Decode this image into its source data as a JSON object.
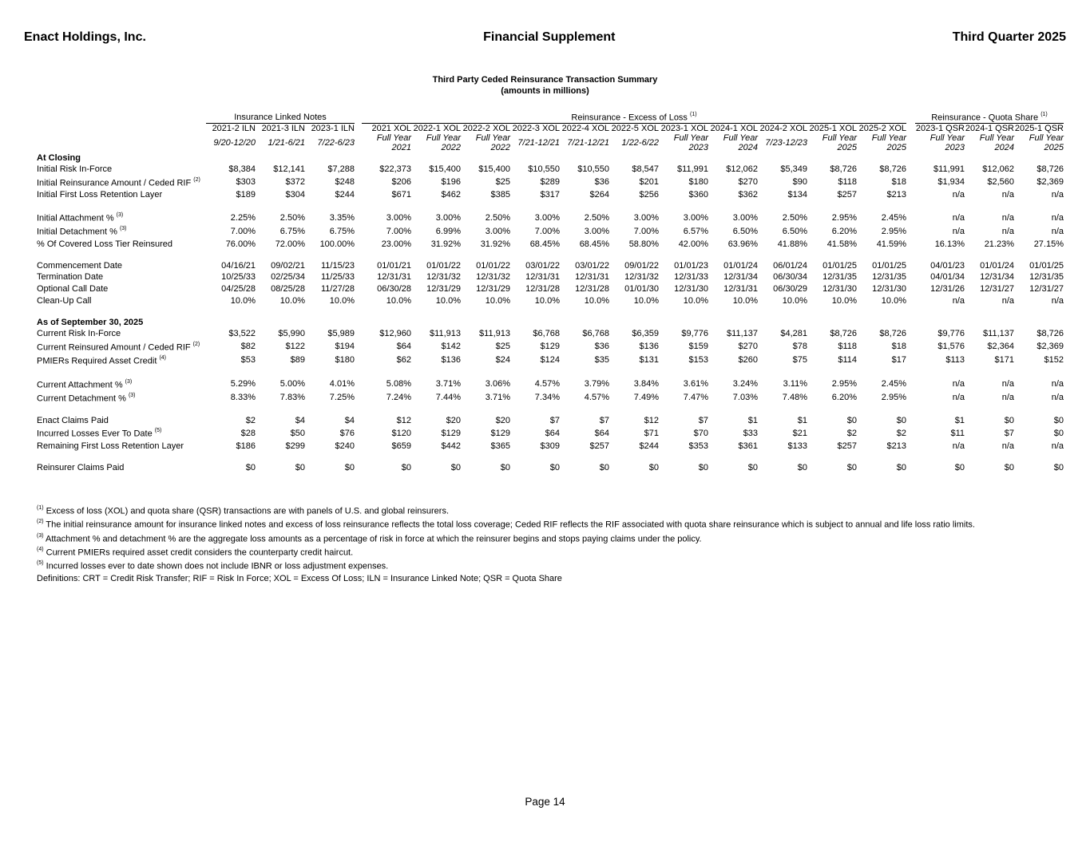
{
  "header": {
    "company": "Enact Holdings, Inc.",
    "doc_title": "Financial Supplement",
    "quarter": "Third Quarter 2025"
  },
  "table": {
    "title": "Third Party Ceded Reinsurance Transaction Summary",
    "subtitle": "(amounts in millions)",
    "groups": [
      {
        "label": "Insurance Linked Notes",
        "sup": "",
        "span": 3
      },
      {
        "label": "Reinsurance - Excess of Loss",
        "sup": "(1)",
        "span": 11
      },
      {
        "label": "Reinsurance - Quota Share",
        "sup": "(1)",
        "span": 3
      }
    ],
    "columns": [
      {
        "name": "2021-2 ILN",
        "period": "9/20-12/20"
      },
      {
        "name": "2021-3 ILN",
        "period": "1/21-6/21"
      },
      {
        "name": "2023-1 ILN",
        "period": "7/22-6/23"
      },
      {
        "name": "2021 XOL",
        "period": "Full Year 2021"
      },
      {
        "name": "2022-1 XOL",
        "period": "Full Year 2022"
      },
      {
        "name": "2022-2 XOL",
        "period": "Full Year 2022"
      },
      {
        "name": "2022-3 XOL",
        "period": "7/21-12/21"
      },
      {
        "name": "2022-4 XOL",
        "period": "7/21-12/21"
      },
      {
        "name": "2022-5 XOL",
        "period": "1/22-6/22"
      },
      {
        "name": "2023-1 XOL",
        "period": "Full Year 2023"
      },
      {
        "name": "2024-1 XOL",
        "period": "Full Year 2024"
      },
      {
        "name": "2024-2 XOL",
        "period": "7/23-12/23"
      },
      {
        "name": "2025-1 XOL",
        "period": "Full Year 2025"
      },
      {
        "name": "2025-2 XOL",
        "period": "Full Year 2025"
      },
      {
        "name": "2023-1 QSR",
        "period": "Full Year 2023"
      },
      {
        "name": "2024-1 QSR",
        "period": "Full Year 2024"
      },
      {
        "name": "2025-1 QSR",
        "period": "Full Year 2025"
      }
    ],
    "rows": [
      {
        "type": "section",
        "label": "At Closing"
      },
      {
        "type": "data",
        "label": "Initial Risk In-Force",
        "sup": "",
        "values": [
          "$8,384",
          "$12,141",
          "$7,288",
          "$22,373",
          "$15,400",
          "$15,400",
          "$10,550",
          "$10,550",
          "$8,547",
          "$11,991",
          "$12,062",
          "$5,349",
          "$8,726",
          "$8,726",
          "$11,991",
          "$12,062",
          "$8,726"
        ]
      },
      {
        "type": "data",
        "label": "Initial Reinsurance Amount / Ceded RIF",
        "sup": "(2)",
        "values": [
          "$303",
          "$372",
          "$248",
          "$206",
          "$196",
          "$25",
          "$289",
          "$36",
          "$201",
          "$180",
          "$270",
          "$90",
          "$118",
          "$18",
          "$1,934",
          "$2,560",
          "$2,369"
        ]
      },
      {
        "type": "data",
        "label": "Initial First Loss Retention Layer",
        "sup": "",
        "values": [
          "$189",
          "$304",
          "$244",
          "$671",
          "$462",
          "$385",
          "$317",
          "$264",
          "$256",
          "$360",
          "$362",
          "$134",
          "$257",
          "$213",
          "n/a",
          "n/a",
          "n/a"
        ]
      },
      {
        "type": "gap"
      },
      {
        "type": "data",
        "label": "Initial Attachment %",
        "sup": "(3)",
        "values": [
          "2.25%",
          "2.50%",
          "3.35%",
          "3.00%",
          "3.00%",
          "2.50%",
          "3.00%",
          "2.50%",
          "3.00%",
          "3.00%",
          "3.00%",
          "2.50%",
          "2.95%",
          "2.45%",
          "n/a",
          "n/a",
          "n/a"
        ]
      },
      {
        "type": "data",
        "label": "Initial Detachment %",
        "sup": "(3)",
        "values": [
          "7.00%",
          "6.75%",
          "6.75%",
          "7.00%",
          "6.99%",
          "3.00%",
          "7.00%",
          "3.00%",
          "7.00%",
          "6.57%",
          "6.50%",
          "6.50%",
          "6.20%",
          "2.95%",
          "n/a",
          "n/a",
          "n/a"
        ]
      },
      {
        "type": "data",
        "label": "% Of Covered Loss Tier Reinsured",
        "sup": "",
        "values": [
          "76.00%",
          "72.00%",
          "100.00%",
          "23.00%",
          "31.92%",
          "31.92%",
          "68.45%",
          "68.45%",
          "58.80%",
          "42.00%",
          "63.96%",
          "41.88%",
          "41.58%",
          "41.59%",
          "16.13%",
          "21.23%",
          "27.15%"
        ]
      },
      {
        "type": "gap"
      },
      {
        "type": "data",
        "label": "Commencement Date",
        "sup": "",
        "values": [
          "04/16/21",
          "09/02/21",
          "11/15/23",
          "01/01/21",
          "01/01/22",
          "01/01/22",
          "03/01/22",
          "03/01/22",
          "09/01/22",
          "01/01/23",
          "01/01/24",
          "06/01/24",
          "01/01/25",
          "01/01/25",
          "04/01/23",
          "01/01/24",
          "01/01/25"
        ]
      },
      {
        "type": "data",
        "label": "Termination Date",
        "sup": "",
        "values": [
          "10/25/33",
          "02/25/34",
          "11/25/33",
          "12/31/31",
          "12/31/32",
          "12/31/32",
          "12/31/31",
          "12/31/31",
          "12/31/32",
          "12/31/33",
          "12/31/34",
          "06/30/34",
          "12/31/35",
          "12/31/35",
          "04/01/34",
          "12/31/34",
          "12/31/35"
        ]
      },
      {
        "type": "data",
        "label": "Optional Call Date",
        "sup": "",
        "values": [
          "04/25/28",
          "08/25/28",
          "11/27/28",
          "06/30/28",
          "12/31/29",
          "12/31/29",
          "12/31/28",
          "12/31/28",
          "01/01/30",
          "12/31/30",
          "12/31/31",
          "06/30/29",
          "12/31/30",
          "12/31/30",
          "12/31/26",
          "12/31/27",
          "12/31/27"
        ]
      },
      {
        "type": "data",
        "label": "Clean-Up Call",
        "sup": "",
        "values": [
          "10.0%",
          "10.0%",
          "10.0%",
          "10.0%",
          "10.0%",
          "10.0%",
          "10.0%",
          "10.0%",
          "10.0%",
          "10.0%",
          "10.0%",
          "10.0%",
          "10.0%",
          "10.0%",
          "n/a",
          "n/a",
          "n/a"
        ]
      },
      {
        "type": "gap"
      },
      {
        "type": "section",
        "label": "As of September 30, 2025"
      },
      {
        "type": "data",
        "label": "Current Risk In-Force",
        "sup": "",
        "values": [
          "$3,522",
          "$5,990",
          "$5,989",
          "$12,960",
          "$11,913",
          "$11,913",
          "$6,768",
          "$6,768",
          "$6,359",
          "$9,776",
          "$11,137",
          "$4,281",
          "$8,726",
          "$8,726",
          "$9,776",
          "$11,137",
          "$8,726"
        ]
      },
      {
        "type": "data",
        "label": "Current Reinsured Amount / Ceded RIF",
        "sup": "(2)",
        "values": [
          "$82",
          "$122",
          "$194",
          "$64",
          "$142",
          "$25",
          "$129",
          "$36",
          "$136",
          "$159",
          "$270",
          "$78",
          "$118",
          "$18",
          "$1,576",
          "$2,364",
          "$2,369"
        ]
      },
      {
        "type": "data",
        "label": "PMIERs Required Asset Credit",
        "sup": "(4)",
        "values": [
          "$53",
          "$89",
          "$180",
          "$62",
          "$136",
          "$24",
          "$124",
          "$35",
          "$131",
          "$153",
          "$260",
          "$75",
          "$114",
          "$17",
          "$113",
          "$171",
          "$152"
        ]
      },
      {
        "type": "gap"
      },
      {
        "type": "data",
        "label": "Current Attachment %",
        "sup": "(3)",
        "values": [
          "5.29%",
          "5.00%",
          "4.01%",
          "5.08%",
          "3.71%",
          "3.06%",
          "4.57%",
          "3.79%",
          "3.84%",
          "3.61%",
          "3.24%",
          "3.11%",
          "2.95%",
          "2.45%",
          "n/a",
          "n/a",
          "n/a"
        ]
      },
      {
        "type": "data",
        "label": "Current Detachment %",
        "sup": "(3)",
        "values": [
          "8.33%",
          "7.83%",
          "7.25%",
          "7.24%",
          "7.44%",
          "3.71%",
          "7.34%",
          "4.57%",
          "7.49%",
          "7.47%",
          "7.03%",
          "7.48%",
          "6.20%",
          "2.95%",
          "n/a",
          "n/a",
          "n/a"
        ]
      },
      {
        "type": "gap"
      },
      {
        "type": "data",
        "label": "Enact Claims Paid",
        "sup": "",
        "values": [
          "$2",
          "$4",
          "$4",
          "$12",
          "$20",
          "$20",
          "$7",
          "$7",
          "$12",
          "$7",
          "$1",
          "$1",
          "$0",
          "$0",
          "$1",
          "$0",
          "$0"
        ]
      },
      {
        "type": "data",
        "label": "Incurred Losses Ever To Date",
        "sup": "(5)",
        "values": [
          "$28",
          "$50",
          "$76",
          "$120",
          "$129",
          "$129",
          "$64",
          "$64",
          "$71",
          "$70",
          "$33",
          "$21",
          "$2",
          "$2",
          "$11",
          "$7",
          "$0"
        ]
      },
      {
        "type": "data",
        "label": "Remaining First Loss Retention Layer",
        "sup": "",
        "values": [
          "$186",
          "$299",
          "$240",
          "$659",
          "$442",
          "$365",
          "$309",
          "$257",
          "$244",
          "$353",
          "$361",
          "$133",
          "$257",
          "$213",
          "n/a",
          "n/a",
          "n/a"
        ]
      },
      {
        "type": "gap"
      },
      {
        "type": "data",
        "label": "Reinsurer Claims Paid",
        "sup": "",
        "values": [
          "$0",
          "$0",
          "$0",
          "$0",
          "$0",
          "$0",
          "$0",
          "$0",
          "$0",
          "$0",
          "$0",
          "$0",
          "$0",
          "$0",
          "$0",
          "$0",
          "$0"
        ]
      }
    ]
  },
  "footnotes": [
    {
      "sup": "(1)",
      "text": "Excess of loss (XOL) and quota share (QSR) transactions are with panels of U.S. and global reinsurers."
    },
    {
      "sup": "(2)",
      "text": "The initial reinsurance amount for insurance linked notes and excess of loss reinsurance reflects the total loss coverage; Ceded RIF reflects the RIF associated with quota share reinsurance which is subject to annual and life loss ratio limits."
    },
    {
      "sup": "(3)",
      "text": "Attachment % and detachment % are the aggregate loss amounts as a percentage of risk in force at which the reinsurer begins and stops paying claims under the policy."
    },
    {
      "sup": "(4)",
      "text": "Current PMIERs required asset credit considers the counterparty credit haircut."
    },
    {
      "sup": "(5)",
      "text": "Incurred losses ever to date shown does not include IBNR or loss adjustment expenses."
    },
    {
      "sup": "",
      "text": "Definitions: CRT = Credit Risk Transfer; RIF = Risk In Force; XOL = Excess Of Loss; ILN = Insurance Linked Note; QSR = Quota Share"
    }
  ],
  "footer": {
    "page_label": "Page 14"
  }
}
